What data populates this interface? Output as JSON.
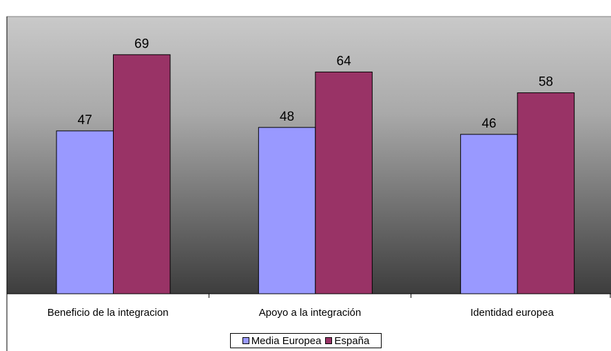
{
  "chart_data": {
    "type": "bar",
    "title": "",
    "categories": [
      "Beneficio de la integracion",
      "Apoyo a la integración",
      "Identidad europea"
    ],
    "series": [
      {
        "name": "Media Europea",
        "values": [
          47,
          48,
          46
        ],
        "color": "#9999ff"
      },
      {
        "name": "España",
        "values": [
          69,
          64,
          58
        ],
        "color": "#993366"
      }
    ],
    "ylim": [
      0,
      80
    ],
    "xlabel": "",
    "ylabel": "",
    "grid": false,
    "data_labels": true,
    "legend_position": "bottom",
    "plot_background": "gradient light-gray to dark-gray"
  }
}
